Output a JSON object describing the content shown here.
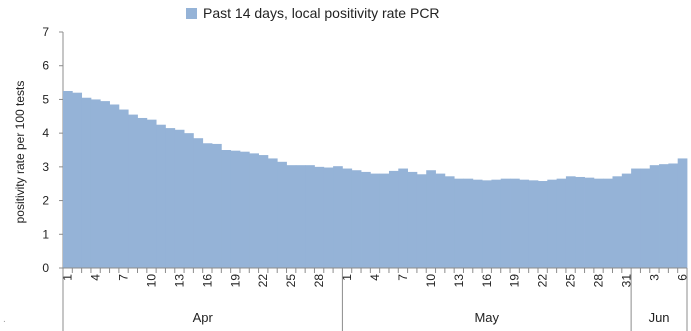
{
  "chart_data": {
    "type": "area",
    "legend": "Past 14 days, local positivity rate PCR",
    "ylabel": "positivity rate per 100 tests",
    "xlabel": "",
    "ylim": [
      0,
      7
    ],
    "yticks": [
      "0",
      "1",
      "2",
      "3",
      "4",
      "5",
      "6",
      "7"
    ],
    "grid": false,
    "legend_position": "top",
    "color": "#95b3d7",
    "x": [
      "Apr 1",
      "Apr 2",
      "Apr 3",
      "Apr 4",
      "Apr 5",
      "Apr 6",
      "Apr 7",
      "Apr 8",
      "Apr 9",
      "Apr 10",
      "Apr 11",
      "Apr 12",
      "Apr 13",
      "Apr 14",
      "Apr 15",
      "Apr 16",
      "Apr 17",
      "Apr 18",
      "Apr 19",
      "Apr 20",
      "Apr 21",
      "Apr 22",
      "Apr 23",
      "Apr 24",
      "Apr 25",
      "Apr 26",
      "Apr 27",
      "Apr 28",
      "Apr 29",
      "Apr 30",
      "May 1",
      "May 2",
      "May 3",
      "May 4",
      "May 5",
      "May 6",
      "May 7",
      "May 8",
      "May 9",
      "May 10",
      "May 11",
      "May 12",
      "May 13",
      "May 14",
      "May 15",
      "May 16",
      "May 17",
      "May 18",
      "May 19",
      "May 20",
      "May 21",
      "May 22",
      "May 23",
      "May 24",
      "May 25",
      "May 26",
      "May 27",
      "May 28",
      "May 29",
      "May 30",
      "May 31",
      "Jun 1",
      "Jun 2",
      "Jun 3",
      "Jun 4",
      "Jun 5",
      "Jun 6"
    ],
    "values": [
      5.25,
      5.2,
      5.05,
      5.0,
      4.95,
      4.85,
      4.7,
      4.55,
      4.45,
      4.4,
      4.25,
      4.15,
      4.1,
      4.0,
      3.85,
      3.7,
      3.68,
      3.5,
      3.48,
      3.45,
      3.4,
      3.35,
      3.25,
      3.15,
      3.05,
      3.05,
      3.05,
      3.0,
      2.98,
      3.02,
      2.95,
      2.9,
      2.85,
      2.8,
      2.8,
      2.88,
      2.95,
      2.85,
      2.78,
      2.9,
      2.8,
      2.72,
      2.65,
      2.65,
      2.62,
      2.6,
      2.62,
      2.65,
      2.65,
      2.62,
      2.6,
      2.58,
      2.62,
      2.65,
      2.72,
      2.7,
      2.68,
      2.65,
      2.65,
      2.72,
      2.8,
      2.95,
      2.95,
      3.05,
      3.08,
      3.1,
      3.25
    ],
    "xtick_labels": [
      {
        "index": 0,
        "label": "1"
      },
      {
        "index": 3,
        "label": "4"
      },
      {
        "index": 6,
        "label": "7"
      },
      {
        "index": 9,
        "label": "10"
      },
      {
        "index": 12,
        "label": "13"
      },
      {
        "index": 15,
        "label": "16"
      },
      {
        "index": 18,
        "label": "19"
      },
      {
        "index": 21,
        "label": "22"
      },
      {
        "index": 24,
        "label": "25"
      },
      {
        "index": 27,
        "label": "28"
      },
      {
        "index": 30,
        "label": "1"
      },
      {
        "index": 33,
        "label": "4"
      },
      {
        "index": 36,
        "label": "7"
      },
      {
        "index": 39,
        "label": "10"
      },
      {
        "index": 42,
        "label": "13"
      },
      {
        "index": 45,
        "label": "16"
      },
      {
        "index": 48,
        "label": "19"
      },
      {
        "index": 51,
        "label": "22"
      },
      {
        "index": 54,
        "label": "25"
      },
      {
        "index": 57,
        "label": "28"
      },
      {
        "index": 60,
        "label": "31"
      },
      {
        "index": 63,
        "label": "3"
      },
      {
        "index": 66,
        "label": "6"
      }
    ],
    "month_groups": [
      {
        "label": "Apr",
        "start": 0,
        "end": 29
      },
      {
        "label": "May",
        "start": 30,
        "end": 60
      },
      {
        "label": "Jun",
        "start": 61,
        "end": 66
      }
    ]
  },
  "stray_mark": "."
}
